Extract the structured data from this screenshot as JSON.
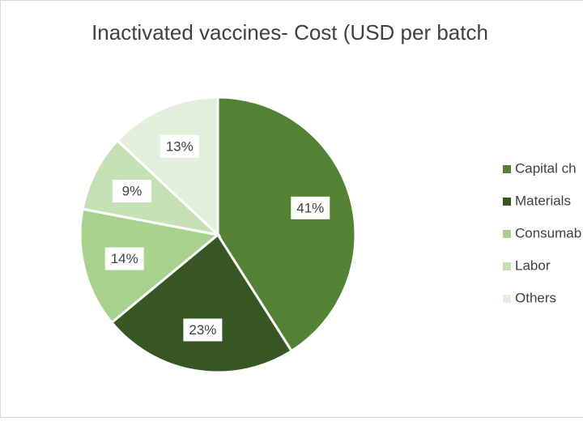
{
  "chart_data": {
    "type": "pie",
    "title": "Inactivated vaccines- Cost (USD per batch",
    "categories": [
      "Capital ch",
      "Materials",
      "Consumab",
      "Labor",
      "Others"
    ],
    "values": [
      41,
      23,
      14,
      9,
      13
    ],
    "value_labels": [
      "41%",
      "23%",
      "14%",
      "9%",
      "13%"
    ],
    "colors": [
      "#548235",
      "#375623",
      "#a9d18e",
      "#c5e0b4",
      "#e2efda"
    ],
    "legend": "right"
  }
}
